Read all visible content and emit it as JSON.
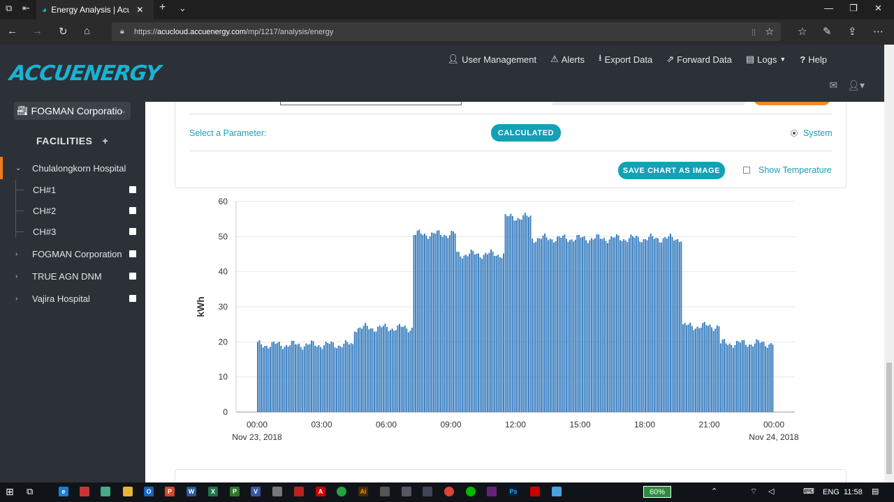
{
  "browser": {
    "tab_title": "Energy Analysis | AcuCl",
    "url_prefix": "https://",
    "url_host": "acucloud.accuenergy.com",
    "url_path": "/mp/1217/analysis/energy"
  },
  "header": {
    "logo_text": "ACCUENERGY",
    "nav": [
      {
        "label": "User Management",
        "icon": "user-icon"
      },
      {
        "label": "Alerts",
        "icon": "warning-icon"
      },
      {
        "label": "Export Data",
        "icon": "download-icon"
      },
      {
        "label": "Forward Data",
        "icon": "forward-icon"
      },
      {
        "label": "Logs",
        "icon": "logs-icon"
      },
      {
        "label": "Help",
        "icon": "help-icon"
      }
    ]
  },
  "sidebar": {
    "org_name": "FOGMAN Corporatio",
    "facilities_label": "FACILITIES",
    "add_symbol": "+",
    "items": [
      {
        "label": "Chulalongkorn Hospital",
        "expanded": true,
        "active": true
      },
      {
        "label": "CH#1",
        "child": true
      },
      {
        "label": "CH#2",
        "child": true
      },
      {
        "label": "CH#3",
        "child": true
      },
      {
        "label": "FOGMAN Corporation"
      },
      {
        "label": "TRUE AGN DNM"
      },
      {
        "label": "Vajira Hospital"
      }
    ]
  },
  "controls": {
    "parameter_label": "Select a Parameter:",
    "calculated_button": "CALCULATED",
    "system_label": "System",
    "save_chart_button": "SAVE CHART AS IMAGE",
    "show_temperature_label": "Show Temperature"
  },
  "chart_data": {
    "type": "bar",
    "ylabel": "kWh",
    "ylim": [
      0,
      60
    ],
    "yticks": [
      0,
      10,
      20,
      30,
      40,
      50,
      60
    ],
    "xticks": [
      "00:00",
      "03:00",
      "06:00",
      "09:00",
      "12:00",
      "15:00",
      "18:00",
      "21:00",
      "00:00"
    ],
    "xdates": [
      "Nov 23, 2018",
      "Nov 24, 2018"
    ],
    "interval_minutes": 5,
    "grid": true,
    "color": "#3a7fc0",
    "profile": [
      {
        "from": "00:00",
        "to": "04:30",
        "value": 19.2
      },
      {
        "from": "04:30",
        "to": "07:15",
        "value": 24.0
      },
      {
        "from": "07:15",
        "to": "09:15",
        "value": 50.7
      },
      {
        "from": "09:15",
        "to": "11:30",
        "value": 45.0
      },
      {
        "from": "11:30",
        "to": "12:45",
        "value": 55.5
      },
      {
        "from": "12:45",
        "to": "19:45",
        "value": 49.5
      },
      {
        "from": "19:45",
        "to": "21:30",
        "value": 24.5
      },
      {
        "from": "21:30",
        "to": "24:00",
        "value": 19.6
      }
    ]
  },
  "taskbar": {
    "battery": "60%",
    "lang": "ENG",
    "time": "11:58"
  }
}
